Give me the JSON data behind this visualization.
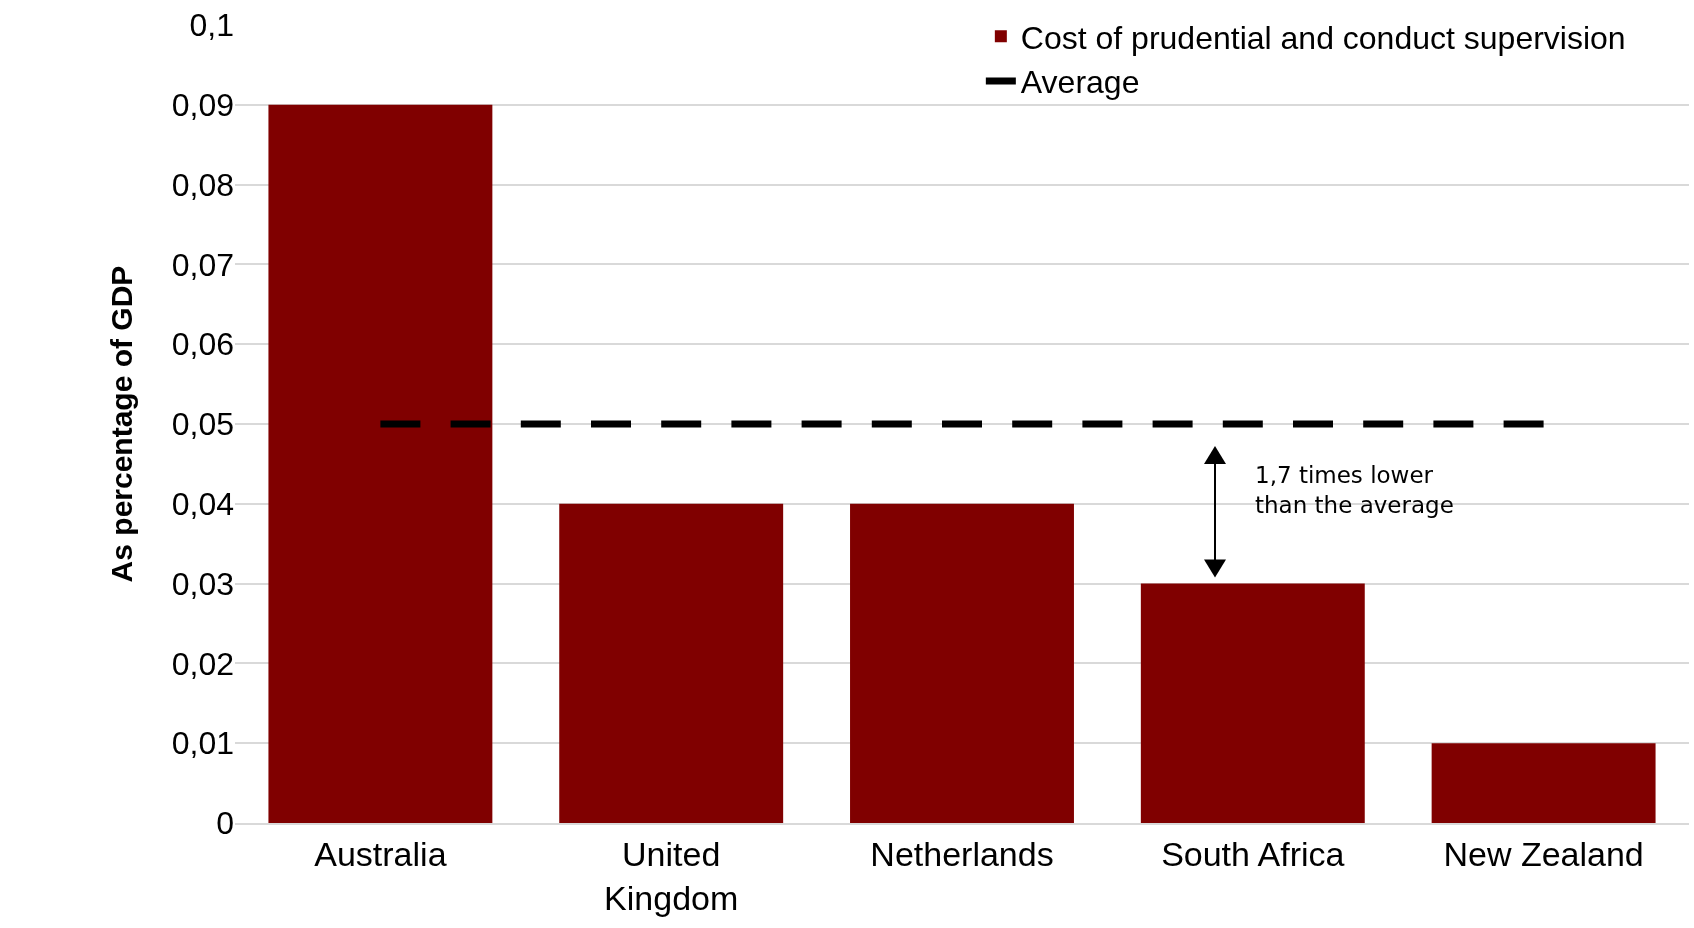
{
  "chart_data": {
    "type": "bar",
    "ylabel": "As percentage of GDP",
    "categories": [
      "Australia",
      "United Kingdom",
      "Netherlands",
      "South Africa",
      "New Zealand"
    ],
    "series": [
      {
        "name": "Cost of prudential and conduct supervision",
        "color": "#800000",
        "values": [
          0.09,
          0.04,
          0.04,
          0.03,
          0.01
        ]
      },
      {
        "name": "Average",
        "type": "line",
        "color": "#000000",
        "line_style": "dashed",
        "marker": "none",
        "values": [
          0.05,
          0.05,
          0.05,
          0.05,
          0.05
        ]
      }
    ],
    "annotations": [
      "1,7 times lower\nthan the average"
    ],
    "ylim": [
      0,
      0.1
    ],
    "yticks": [
      0,
      {
        "value": 0.01,
        "label": "0,01"
      },
      {
        "value": 0.02,
        "label": "0,02"
      },
      {
        "value": 0.03,
        "label": "0,03"
      },
      {
        "value": 0.04,
        "label": "0,04"
      },
      {
        "value": 0.05,
        "label": "0,05"
      },
      {
        "value": 0.06,
        "label": "0,06"
      },
      {
        "value": 0.07,
        "label": "0,07"
      },
      {
        "value": 0.08,
        "label": "0,08"
      },
      {
        "value": 0.09,
        "label": "0,09"
      },
      {
        "value": 0.1,
        "label": "0,1"
      }
    ],
    "grid": "y",
    "legend": "top right"
  }
}
